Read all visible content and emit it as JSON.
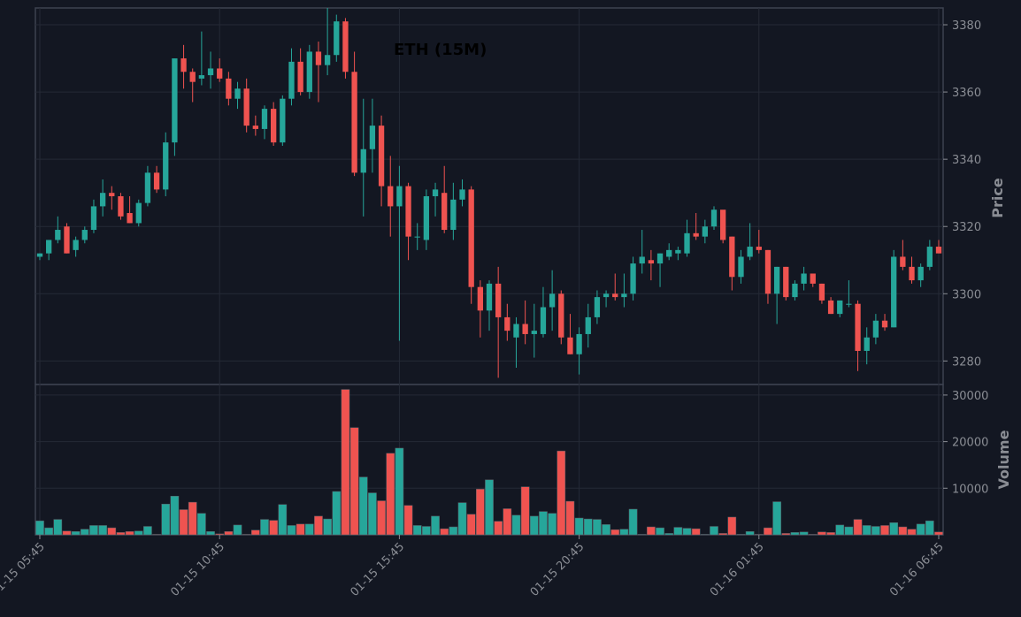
{
  "chart_data": {
    "type": "candlestick",
    "title": "ETH (15M)",
    "price_ylabel": "Price",
    "volume_ylabel": "Volume",
    "price_ylim": [
      3273,
      3385
    ],
    "price_yticks": [
      3280,
      3300,
      3320,
      3340,
      3360,
      3380
    ],
    "volume_ylim": [
      0,
      31500
    ],
    "volume_yticks": [
      10000,
      20000,
      30000
    ],
    "x_tick_labels": [
      "01-15 05:45",
      "01-15 10:45",
      "01-15 15:45",
      "01-15 20:45",
      "01-16 01:45",
      "01-16 06:45"
    ],
    "x_tick_indices": [
      0,
      20,
      40,
      60,
      80,
      100
    ],
    "grid": true,
    "up_color": "#26a69a",
    "down_color": "#ef5350",
    "candles": [
      [
        3311,
        3312,
        3310,
        3312
      ],
      [
        3312,
        3316,
        3310,
        3316
      ],
      [
        3316,
        3323,
        3315,
        3319
      ],
      [
        3320,
        3321,
        3312,
        3312
      ],
      [
        3313,
        3317,
        3311,
        3316
      ],
      [
        3316,
        3320,
        3315,
        3319
      ],
      [
        3319,
        3328,
        3318,
        3326
      ],
      [
        3326,
        3334,
        3323,
        3330
      ],
      [
        3330,
        3332,
        3325,
        3329
      ],
      [
        3329,
        3330,
        3322,
        3323
      ],
      [
        3324,
        3329,
        3321,
        3321
      ],
      [
        3321,
        3328,
        3320,
        3327
      ],
      [
        3327,
        3338,
        3326,
        3336
      ],
      [
        3336,
        3338,
        3330,
        3331
      ],
      [
        3331,
        3348,
        3329,
        3345
      ],
      [
        3345,
        3370,
        3341,
        3370
      ],
      [
        3370,
        3374,
        3361,
        3366
      ],
      [
        3366,
        3367,
        3357,
        3363
      ],
      [
        3364,
        3378,
        3362,
        3365
      ],
      [
        3365,
        3372,
        3361,
        3367
      ],
      [
        3367,
        3370,
        3363,
        3364
      ],
      [
        3364,
        3366,
        3356,
        3358
      ],
      [
        3358,
        3363,
        3355,
        3361
      ],
      [
        3361,
        3364,
        3348,
        3350
      ],
      [
        3350,
        3353,
        3347,
        3349
      ],
      [
        3349,
        3356,
        3346,
        3355
      ],
      [
        3355,
        3357,
        3344,
        3345
      ],
      [
        3345,
        3359,
        3344,
        3358
      ],
      [
        3358,
        3373,
        3356,
        3369
      ],
      [
        3369,
        3373,
        3359,
        3360
      ],
      [
        3360,
        3374,
        3358,
        3372
      ],
      [
        3372,
        3375,
        3357,
        3368
      ],
      [
        3368,
        3385,
        3365,
        3371
      ],
      [
        3371,
        3383,
        3369,
        3381
      ],
      [
        3381,
        3382,
        3364,
        3366
      ],
      [
        3366,
        3372,
        3335,
        3336
      ],
      [
        3336,
        3358,
        3323,
        3343
      ],
      [
        3343,
        3358,
        3336,
        3350
      ],
      [
        3350,
        3353,
        3326,
        3332
      ],
      [
        3332,
        3341,
        3317,
        3326
      ],
      [
        3326,
        3338,
        3286,
        3332
      ],
      [
        3332,
        3333,
        3310,
        3317
      ],
      [
        3317,
        3321,
        3313,
        3317
      ],
      [
        3316,
        3331,
        3313,
        3329
      ],
      [
        3329,
        3333,
        3323,
        3331
      ],
      [
        3330,
        3338,
        3318,
        3319
      ],
      [
        3319,
        3333,
        3316,
        3328
      ],
      [
        3328,
        3334,
        3326,
        3331
      ],
      [
        3331,
        3332,
        3297,
        3302
      ],
      [
        3302,
        3304,
        3287,
        3295
      ],
      [
        3295,
        3304,
        3289,
        3303
      ],
      [
        3303,
        3308,
        3275,
        3293
      ],
      [
        3293,
        3297,
        3286,
        3289
      ],
      [
        3287,
        3293,
        3278,
        3291
      ],
      [
        3291,
        3298,
        3285,
        3288
      ],
      [
        3288,
        3297,
        3281,
        3289
      ],
      [
        3288,
        3302,
        3287,
        3296
      ],
      [
        3296,
        3307,
        3289,
        3300
      ],
      [
        3300,
        3301,
        3285,
        3287
      ],
      [
        3287,
        3294,
        3282,
        3282
      ],
      [
        3282,
        3290,
        3276,
        3288
      ],
      [
        3288,
        3297,
        3284,
        3293
      ],
      [
        3293,
        3301,
        3291,
        3299
      ],
      [
        3299,
        3301,
        3296,
        3300
      ],
      [
        3300,
        3306,
        3298,
        3299
      ],
      [
        3299,
        3306,
        3296,
        3300
      ],
      [
        3300,
        3311,
        3298,
        3309
      ],
      [
        3309,
        3319,
        3306,
        3311
      ],
      [
        3310,
        3313,
        3304,
        3309
      ],
      [
        3309,
        3312,
        3302,
        3312
      ],
      [
        3311,
        3315,
        3310,
        3313
      ],
      [
        3312,
        3314,
        3310,
        3313
      ],
      [
        3312,
        3322,
        3311,
        3318
      ],
      [
        3318,
        3324,
        3316,
        3317
      ],
      [
        3317,
        3322,
        3315,
        3320
      ],
      [
        3320,
        3326,
        3319,
        3325
      ],
      [
        3325,
        3324,
        3315,
        3316
      ],
      [
        3317,
        3317,
        3301,
        3305
      ],
      [
        3305,
        3313,
        3303,
        3311
      ],
      [
        3311,
        3321,
        3310,
        3314
      ],
      [
        3314,
        3319,
        3312,
        3313
      ],
      [
        3313,
        3313,
        3297,
        3300
      ],
      [
        3300,
        3308,
        3291,
        3308
      ],
      [
        3308,
        3308,
        3298,
        3299
      ],
      [
        3299,
        3304,
        3298,
        3303
      ],
      [
        3303,
        3308,
        3301,
        3306
      ],
      [
        3306,
        3306,
        3302,
        3303
      ],
      [
        3303,
        3303,
        3297,
        3298
      ],
      [
        3298,
        3299,
        3294,
        3294
      ],
      [
        3294,
        3298,
        3293,
        3298
      ],
      [
        3297,
        3304,
        3296,
        3297
      ],
      [
        3297,
        3298,
        3277,
        3283
      ],
      [
        3283,
        3290,
        3279,
        3287
      ],
      [
        3287,
        3294,
        3285,
        3292
      ],
      [
        3292,
        3294,
        3289,
        3290
      ],
      [
        3290,
        3313,
        3290,
        3311
      ],
      [
        3311,
        3316,
        3307,
        3308
      ],
      [
        3308,
        3311,
        3303,
        3304
      ],
      [
        3304,
        3309,
        3302,
        3308
      ],
      [
        3308,
        3316,
        3307,
        3314
      ],
      [
        3314,
        3316,
        3312,
        3312
      ]
    ],
    "volume": [
      3000,
      1500,
      3300,
      800,
      700,
      1200,
      2000,
      2000,
      1500,
      500,
      700,
      800,
      1800,
      100,
      6600,
      8300,
      5400,
      7000,
      4600,
      700,
      200,
      700,
      2100,
      100,
      1000,
      3300,
      3100,
      6500,
      2000,
      2300,
      2300,
      4000,
      3400,
      9300,
      31200,
      23000,
      12400,
      9000,
      7300,
      17500,
      18600,
      6300,
      2000,
      1800,
      4000,
      1300,
      1700,
      6900,
      4400,
      9800,
      11800,
      2900,
      5600,
      4200,
      10300,
      4000,
      5000,
      4600,
      18000,
      7200,
      3600,
      3400,
      3300,
      2200,
      1100,
      1200,
      5500,
      100,
      1700,
      1500,
      300,
      1600,
      1400,
      1300,
      100,
      1800,
      300,
      3800,
      100,
      700,
      100,
      1500,
      7100,
      300,
      500,
      600,
      100,
      600,
      500,
      2100,
      1700,
      3300,
      2000,
      1800,
      2000,
      2600,
      1700,
      1200,
      2300,
      3000,
      600
    ]
  }
}
